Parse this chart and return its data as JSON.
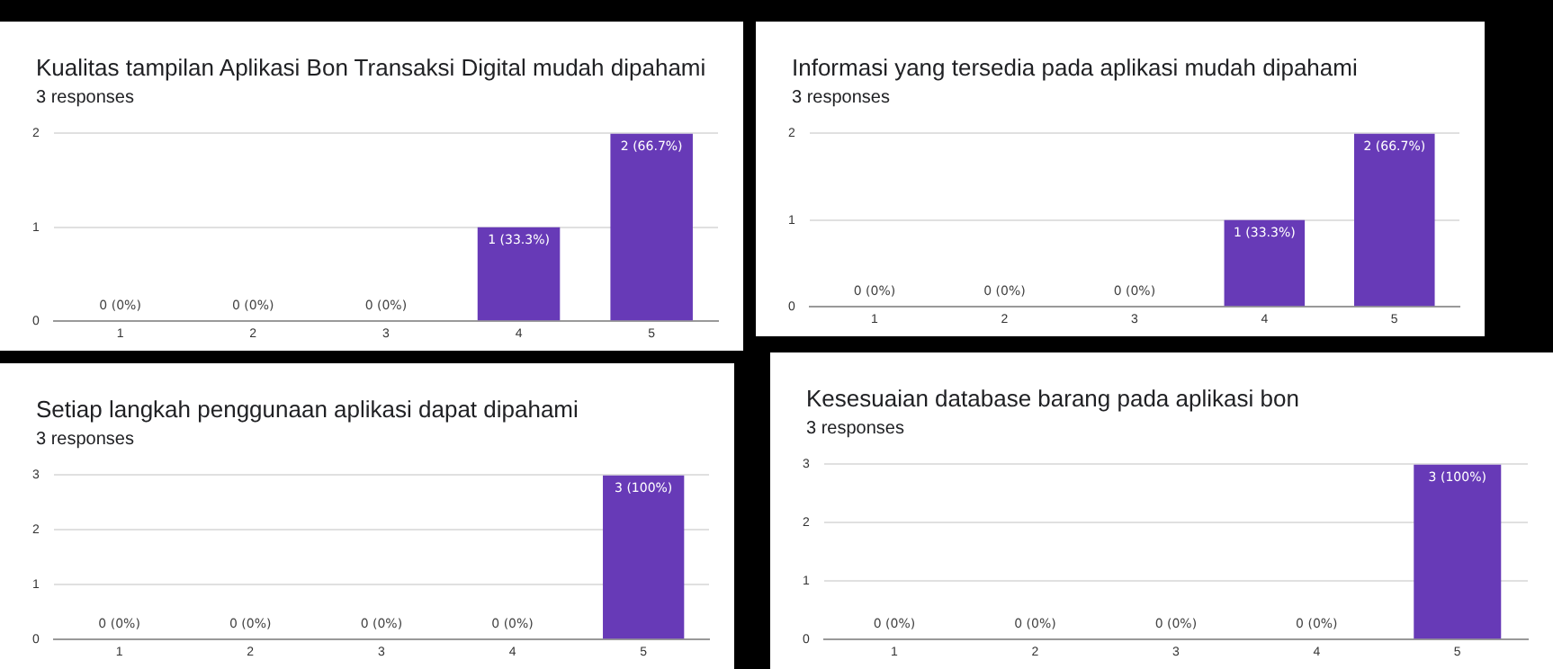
{
  "chart_data": [
    {
      "type": "bar",
      "title": "Kualitas tampilan Aplikasi Bon Transaksi Digital  mudah dipahami",
      "subtitle": "3 responses",
      "categories": [
        "1",
        "2",
        "3",
        "4",
        "5"
      ],
      "values": [
        0,
        0,
        0,
        1,
        2
      ],
      "value_labels": [
        "0 (0%)",
        "0 (0%)",
        "0 (0%)",
        "1 (33.3%)",
        "2 (66.7%)"
      ],
      "color": "#673ab7",
      "ylim": [
        0,
        2
      ],
      "yticks": [
        0,
        1,
        2
      ],
      "grid": "y",
      "legend": false
    },
    {
      "type": "bar",
      "title": "Informasi yang tersedia pada aplikasi mudah dipahami",
      "subtitle": "3 responses",
      "categories": [
        "1",
        "2",
        "3",
        "4",
        "5"
      ],
      "values": [
        0,
        0,
        0,
        1,
        2
      ],
      "value_labels": [
        "0 (0%)",
        "0 (0%)",
        "0 (0%)",
        "1 (33.3%)",
        "2 (66.7%)"
      ],
      "color": "#673ab7",
      "ylim": [
        0,
        2
      ],
      "yticks": [
        0,
        1,
        2
      ],
      "grid": "y",
      "legend": false
    },
    {
      "type": "bar",
      "title": "Setiap langkah penggunaan aplikasi dapat dipahami",
      "subtitle": "3 responses",
      "categories": [
        "1",
        "2",
        "3",
        "4",
        "5"
      ],
      "values": [
        0,
        0,
        0,
        0,
        3
      ],
      "value_labels": [
        "0 (0%)",
        "0 (0%)",
        "0 (0%)",
        "0 (0%)",
        "3 (100%)"
      ],
      "color": "#673ab7",
      "ylim": [
        0,
        3
      ],
      "yticks": [
        0,
        1,
        2,
        3
      ],
      "grid": "y",
      "legend": false
    },
    {
      "type": "bar",
      "title": "Kesesuaian database barang pada aplikasi bon",
      "subtitle": "3 responses",
      "categories": [
        "1",
        "2",
        "3",
        "4",
        "5"
      ],
      "values": [
        0,
        0,
        0,
        0,
        3
      ],
      "value_labels": [
        "0 (0%)",
        "0 (0%)",
        "0 (0%)",
        "0 (0%)",
        "3 (100%)"
      ],
      "color": "#673ab7",
      "ylim": [
        0,
        3
      ],
      "yticks": [
        0,
        1,
        2,
        3
      ],
      "grid": "y",
      "legend": false
    }
  ]
}
